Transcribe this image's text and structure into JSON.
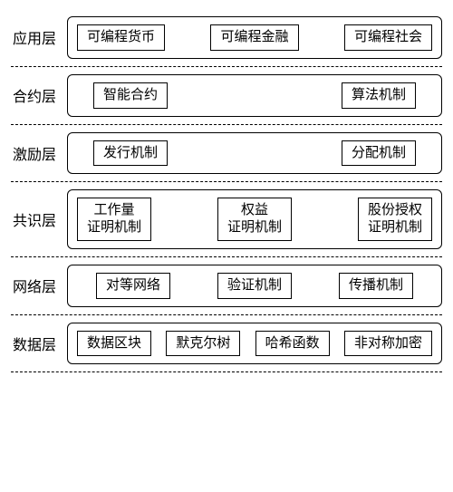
{
  "diagram": {
    "type": "layered-architecture",
    "border_color": "#000000",
    "background_color": "#ffffff",
    "text_color": "#000000",
    "divider_style": "dashed",
    "label_fontsize": 16,
    "item_fontsize": 15,
    "layer_box_radius": 6,
    "layers": [
      {
        "label": "应用层",
        "justify": "between",
        "items": [
          "可编程货币",
          "可编程金融",
          "可编程社会"
        ]
      },
      {
        "label": "合约层",
        "justify": "wide",
        "items": [
          "智能合约",
          "算法机制"
        ]
      },
      {
        "label": "激励层",
        "justify": "wide",
        "items": [
          "发行机制",
          "分配机制"
        ]
      },
      {
        "label": "共识层",
        "justify": "between",
        "items": [
          "工作量\n证明机制",
          "权益\n证明机制",
          "股份授权\n证明机制"
        ]
      },
      {
        "label": "网络层",
        "justify": "around",
        "items": [
          "对等网络",
          "验证机制",
          "传播机制"
        ]
      },
      {
        "label": "数据层",
        "justify": "between",
        "items": [
          "数据区块",
          "默克尔树",
          "哈希函数",
          "非对称加密"
        ]
      }
    ]
  }
}
